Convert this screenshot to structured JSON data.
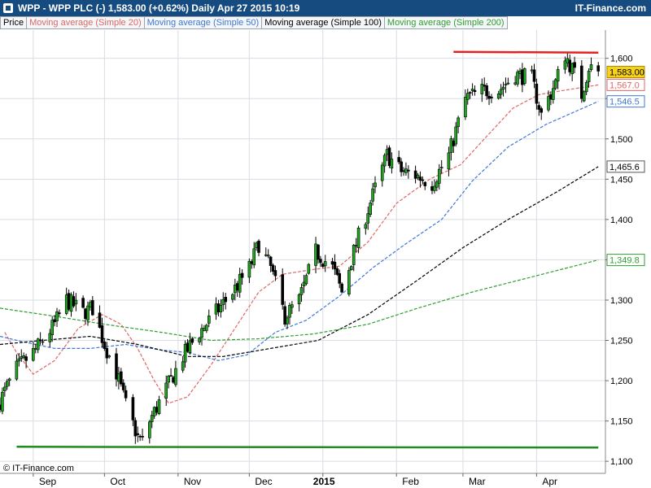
{
  "header": {
    "title": "WPP - WPP PLC (-)    1,583.00 (+0.62%)    Daily  Apr 27 2015 10:19",
    "brand": "IT-Finance.com"
  },
  "legend": [
    {
      "label": "Price",
      "color": "#000000"
    },
    {
      "label": "Moving average (Simple 20)",
      "color": "#e06666"
    },
    {
      "label": "Moving average (Simple 50)",
      "color": "#3d78d8"
    },
    {
      "label": "Moving average (Simple 100)",
      "color": "#000000"
    },
    {
      "label": "Moving average (Simple 200)",
      "color": "#2f9e2f"
    }
  ],
  "watermark": "© IT-Finance.com",
  "chart_data": {
    "type": "candlestick",
    "ylim": [
      1085,
      1635
    ],
    "y_ticks": [
      1100,
      1150,
      1200,
      1250,
      1300,
      1350,
      1400,
      1450,
      1500,
      1550,
      1600
    ],
    "x_range": [
      "2014-08-18",
      "2015-04-30"
    ],
    "x_ticks": [
      {
        "label": "Sep",
        "date": "2014-09-01"
      },
      {
        "label": "Oct",
        "date": "2014-10-01"
      },
      {
        "label": "Nov",
        "date": "2014-11-01"
      },
      {
        "label": "Dec",
        "date": "2014-12-01"
      },
      {
        "label": "2015",
        "date": "2015-01-01",
        "bold": true
      },
      {
        "label": "Feb",
        "date": "2015-02-01"
      },
      {
        "label": "Mar",
        "date": "2015-03-01"
      },
      {
        "label": "Apr",
        "date": "2015-04-01"
      }
    ],
    "price_keypoints": [
      [
        "2014-08-18",
        1175
      ],
      [
        "2014-08-25",
        1215
      ],
      [
        "2014-09-01",
        1235
      ],
      [
        "2014-09-10",
        1270
      ],
      [
        "2014-09-15",
        1300
      ],
      [
        "2014-09-22",
        1285
      ],
      [
        "2014-09-26",
        1290
      ],
      [
        "2014-10-01",
        1245
      ],
      [
        "2014-10-06",
        1210
      ],
      [
        "2014-10-10",
        1170
      ],
      [
        "2014-10-15",
        1130
      ],
      [
        "2014-10-17",
        1125
      ],
      [
        "2014-10-20",
        1150
      ],
      [
        "2014-10-27",
        1190
      ],
      [
        "2014-11-03",
        1230
      ],
      [
        "2014-11-10",
        1260
      ],
      [
        "2014-11-17",
        1285
      ],
      [
        "2014-11-24",
        1310
      ],
      [
        "2014-12-01",
        1340
      ],
      [
        "2014-12-05",
        1370
      ],
      [
        "2014-12-10",
        1340
      ],
      [
        "2014-12-16",
        1280
      ],
      [
        "2014-12-22",
        1300
      ],
      [
        "2014-12-29",
        1360
      ],
      [
        "2015-01-05",
        1340
      ],
      [
        "2015-01-09",
        1310
      ],
      [
        "2015-01-15",
        1370
      ],
      [
        "2015-01-22",
        1430
      ],
      [
        "2015-01-28",
        1480
      ],
      [
        "2015-02-03",
        1460
      ],
      [
        "2015-02-09",
        1455
      ],
      [
        "2015-02-16",
        1445
      ],
      [
        "2015-02-23",
        1480
      ],
      [
        "2015-03-02",
        1550
      ],
      [
        "2015-03-09",
        1560
      ],
      [
        "2015-03-16",
        1560
      ],
      [
        "2015-03-23",
        1580
      ],
      [
        "2015-03-30",
        1575
      ],
      [
        "2015-04-03",
        1530
      ],
      [
        "2015-04-09",
        1570
      ],
      [
        "2015-04-13",
        1605
      ],
      [
        "2015-04-17",
        1580
      ],
      [
        "2015-04-20",
        1555
      ],
      [
        "2015-04-23",
        1590
      ],
      [
        "2015-04-27",
        1583
      ]
    ],
    "last_price": 1583.0,
    "change_pct": 0.62,
    "series": [
      {
        "name": "Moving average (Simple 20)",
        "color": "#e06666",
        "style": "dashed",
        "last": 1567.0,
        "points": [
          [
            "2014-08-20",
            1260
          ],
          [
            "2014-08-25",
            1235
          ],
          [
            "2014-09-01",
            1208
          ],
          [
            "2014-09-10",
            1225
          ],
          [
            "2014-09-20",
            1265
          ],
          [
            "2014-09-30",
            1282
          ],
          [
            "2014-10-08",
            1270
          ],
          [
            "2014-10-15",
            1240
          ],
          [
            "2014-10-22",
            1200
          ],
          [
            "2014-10-28",
            1172
          ],
          [
            "2014-11-05",
            1180
          ],
          [
            "2014-11-15",
            1220
          ],
          [
            "2014-11-25",
            1265
          ],
          [
            "2014-12-05",
            1310
          ],
          [
            "2014-12-15",
            1332
          ],
          [
            "2014-12-28",
            1338
          ],
          [
            "2015-01-08",
            1342
          ],
          [
            "2015-01-20",
            1372
          ],
          [
            "2015-02-01",
            1420
          ],
          [
            "2015-02-15",
            1450
          ],
          [
            "2015-02-28",
            1468
          ],
          [
            "2015-03-10",
            1500
          ],
          [
            "2015-03-22",
            1538
          ],
          [
            "2015-04-02",
            1555
          ],
          [
            "2015-04-12",
            1560
          ],
          [
            "2015-04-27",
            1567
          ]
        ]
      },
      {
        "name": "Moving average (Simple 50)",
        "color": "#3d78d8",
        "style": "dashed",
        "last": 1546.5,
        "points": [
          [
            "2014-08-18",
            1255
          ],
          [
            "2014-08-28",
            1248
          ],
          [
            "2014-09-10",
            1240
          ],
          [
            "2014-09-25",
            1240
          ],
          [
            "2014-10-10",
            1245
          ],
          [
            "2014-10-25",
            1238
          ],
          [
            "2014-11-05",
            1235
          ],
          [
            "2014-11-18",
            1225
          ],
          [
            "2014-11-30",
            1232
          ],
          [
            "2014-12-12",
            1260
          ],
          [
            "2014-12-25",
            1275
          ],
          [
            "2015-01-08",
            1305
          ],
          [
            "2015-01-22",
            1340
          ],
          [
            "2015-02-05",
            1370
          ],
          [
            "2015-02-20",
            1400
          ],
          [
            "2015-03-05",
            1448
          ],
          [
            "2015-03-20",
            1490
          ],
          [
            "2015-04-05",
            1518
          ],
          [
            "2015-04-27",
            1546.5
          ]
        ]
      },
      {
        "name": "Moving average (Simple 100)",
        "color": "#000000",
        "style": "dashed",
        "last": 1465.6,
        "points": [
          [
            "2014-08-18",
            1245
          ],
          [
            "2014-09-05",
            1250
          ],
          [
            "2014-09-25",
            1255
          ],
          [
            "2014-10-15",
            1245
          ],
          [
            "2014-11-05",
            1230
          ],
          [
            "2014-11-20",
            1230
          ],
          [
            "2014-12-10",
            1240
          ],
          [
            "2014-12-30",
            1250
          ],
          [
            "2015-01-20",
            1282
          ],
          [
            "2015-02-10",
            1325
          ],
          [
            "2015-03-01",
            1365
          ],
          [
            "2015-03-20",
            1400
          ],
          [
            "2015-04-10",
            1435
          ],
          [
            "2015-04-27",
            1465.6
          ]
        ]
      },
      {
        "name": "Moving average (Simple 200)",
        "color": "#2f9e2f",
        "style": "dashed",
        "last": 1349.8,
        "points": [
          [
            "2014-08-18",
            1290
          ],
          [
            "2014-09-10",
            1280
          ],
          [
            "2014-10-01",
            1270
          ],
          [
            "2014-10-25",
            1260
          ],
          [
            "2014-11-15",
            1250
          ],
          [
            "2014-12-05",
            1252
          ],
          [
            "2014-12-28",
            1258
          ],
          [
            "2015-01-20",
            1270
          ],
          [
            "2015-02-10",
            1290
          ],
          [
            "2015-03-05",
            1310
          ],
          [
            "2015-03-25",
            1325
          ],
          [
            "2015-04-27",
            1349.8
          ]
        ]
      }
    ],
    "annotations": [
      {
        "name": "resistance-line",
        "color": "#e52020",
        "from": [
          "2015-02-25",
          1608
        ],
        "to": [
          "2015-04-27",
          1607
        ]
      },
      {
        "name": "support-line",
        "color": "#1e8c1e",
        "from": [
          "2014-08-25",
          1118
        ],
        "to": [
          "2015-04-27",
          1117
        ]
      }
    ]
  }
}
